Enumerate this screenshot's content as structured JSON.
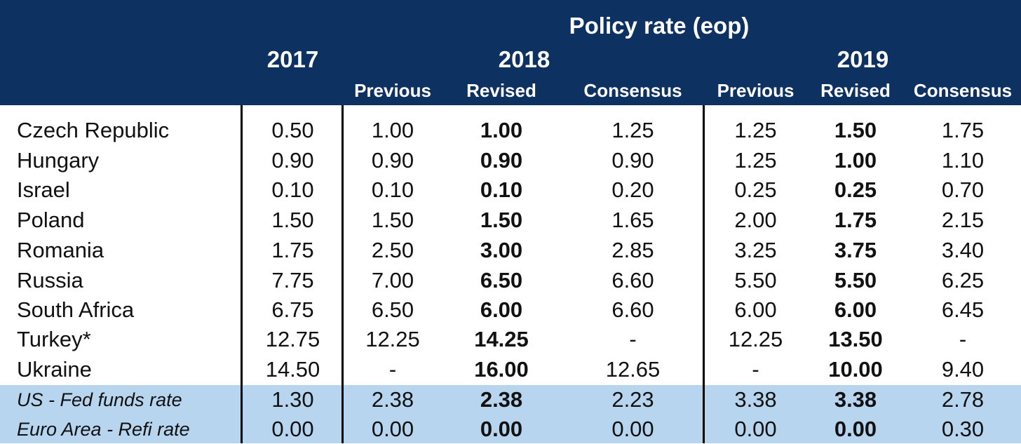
{
  "table": {
    "title": "Policy rate (eop)",
    "years": {
      "y2017": "2017",
      "y2018": "2018",
      "y2019": "2019"
    },
    "subheaders": {
      "prev_2018": "Previous",
      "rev_2018": "Revised",
      "cons_2018": "Consensus",
      "prev_2019": "Previous",
      "rev_2019": "Revised",
      "cons_2019": "Consensus"
    },
    "rows": [
      {
        "country": "Czech Republic",
        "v2017": "0.50",
        "prev2018": "1.00",
        "rev2018": "1.00",
        "cons2018": "1.25",
        "prev2019": "1.25",
        "rev2019": "1.50",
        "cons2019": "1.75"
      },
      {
        "country": "Hungary",
        "v2017": "0.90",
        "prev2018": "0.90",
        "rev2018": "0.90",
        "cons2018": "0.90",
        "prev2019": "1.25",
        "rev2019": "1.00",
        "cons2019": "1.10"
      },
      {
        "country": "Israel",
        "v2017": "0.10",
        "prev2018": "0.10",
        "rev2018": "0.10",
        "cons2018": "0.20",
        "prev2019": "0.25",
        "rev2019": "0.25",
        "cons2019": "0.70"
      },
      {
        "country": "Poland",
        "v2017": "1.50",
        "prev2018": "1.50",
        "rev2018": "1.50",
        "cons2018": "1.65",
        "prev2019": "2.00",
        "rev2019": "1.75",
        "cons2019": "2.15"
      },
      {
        "country": "Romania",
        "v2017": "1.75",
        "prev2018": "2.50",
        "rev2018": "3.00",
        "cons2018": "2.85",
        "prev2019": "3.25",
        "rev2019": "3.75",
        "cons2019": "3.40"
      },
      {
        "country": "Russia",
        "v2017": "7.75",
        "prev2018": "7.00",
        "rev2018": "6.50",
        "cons2018": "6.60",
        "prev2019": "5.50",
        "rev2019": "5.50",
        "cons2019": "6.25"
      },
      {
        "country": "South Africa",
        "v2017": "6.75",
        "prev2018": "6.50",
        "rev2018": "6.00",
        "cons2018": "6.60",
        "prev2019": "6.00",
        "rev2019": "6.00",
        "cons2019": "6.45"
      },
      {
        "country": "Turkey*",
        "v2017": "12.75",
        "prev2018": "12.25",
        "rev2018": "14.25",
        "cons2018": "-",
        "prev2019": "12.25",
        "rev2019": "13.50",
        "cons2019": "-"
      },
      {
        "country": "Ukraine",
        "v2017": "14.50",
        "prev2018": "-",
        "rev2018": "16.00",
        "cons2018": "12.65",
        "prev2019": "-",
        "rev2019": "10.00",
        "cons2019": "9.40"
      },
      {
        "country": "US - Fed funds rate",
        "v2017": "1.30",
        "prev2018": "2.38",
        "rev2018": "2.38",
        "cons2018": "2.23",
        "prev2019": "3.38",
        "rev2019": "3.38",
        "cons2019": "2.78"
      },
      {
        "country": "Euro Area - Refi rate",
        "v2017": "0.00",
        "prev2018": "0.00",
        "rev2018": "0.00",
        "cons2018": "0.00",
        "prev2019": "0.00",
        "rev2019": "0.00",
        "cons2019": "0.30"
      }
    ],
    "colors": {
      "header_bg": "#0d3161",
      "highlight_row_bg": "#b8d5ef"
    }
  }
}
